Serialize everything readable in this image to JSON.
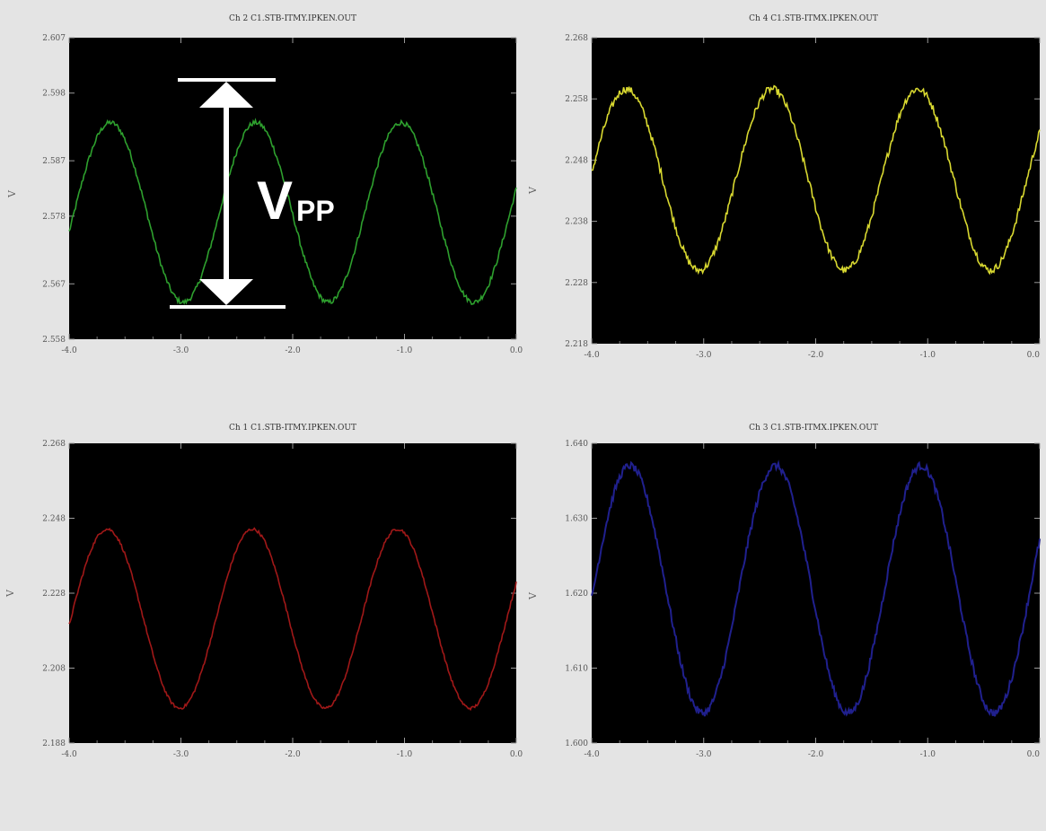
{
  "chart_data": [
    {
      "type": "line",
      "title": "Ch 2  C1.STB-ITMY.IPKEN.OUT",
      "ylabel": "V",
      "color": "#2ea02e",
      "xlim": [
        -4.0,
        0.0
      ],
      "ylim": [
        2.558,
        2.607
      ],
      "x_ticks": [
        -4.0,
        -3.0,
        -2.0,
        -1.0,
        0.0
      ],
      "x_tick_labels": [
        "-4.0",
        "-3.0",
        "-2.0",
        "-1.0",
        "0.0"
      ],
      "y_ticks": [
        2.558,
        2.567,
        2.578,
        2.587,
        2.598,
        2.607
      ],
      "y_tick_labels": [
        "2.558",
        "2.567",
        "2.578",
        "2.587",
        "2.598",
        "2.607"
      ],
      "series": [
        {
          "amplitude": 0.0146,
          "offset": 2.5786,
          "peaks_x": [
            -3.63,
            -2.28,
            -1.03
          ],
          "period": 1.3,
          "noise": 0.0004
        }
      ]
    },
    {
      "type": "line",
      "title": "Ch 4  C1.STB-ITMX.IPKEN.OUT",
      "ylabel": "V",
      "color": "#d8d830",
      "xlim": [
        -4.0,
        0.0
      ],
      "ylim": [
        2.218,
        2.268
      ],
      "x_ticks": [
        -4.0,
        -3.0,
        -2.0,
        -1.0,
        0.0
      ],
      "x_tick_labels": [
        "-4.0",
        "-3.0",
        "-2.0",
        "-1.0",
        "0.0"
      ],
      "y_ticks": [
        2.218,
        2.228,
        2.238,
        2.248,
        2.258,
        2.268
      ],
      "y_tick_labels": [
        "2.218",
        "2.228",
        "2.238",
        "2.248",
        "2.258",
        "2.268"
      ],
      "series": [
        {
          "amplitude": 0.0148,
          "offset": 2.2448,
          "peaks_x": [
            -3.69,
            -2.33,
            -1.05
          ],
          "period": 1.3,
          "noise": 0.0006
        }
      ]
    },
    {
      "type": "line",
      "title": "Ch 1  C1.STB-ITMY.IPKEN.OUT",
      "ylabel": "V",
      "color": "#a01818",
      "xlim": [
        -4.0,
        0.0
      ],
      "ylim": [
        2.188,
        2.268
      ],
      "x_ticks": [
        -4.0,
        -3.0,
        -2.0,
        -1.0,
        0.0
      ],
      "x_tick_labels": [
        "-4.0",
        "-3.0",
        "-2.0",
        "-1.0",
        "0.0"
      ],
      "y_ticks": [
        2.188,
        2.208,
        2.228,
        2.248,
        2.268
      ],
      "y_tick_labels": [
        "2.188",
        "2.208",
        "2.228",
        "2.248",
        "2.268"
      ],
      "series": [
        {
          "amplitude": 0.0239,
          "offset": 2.2212,
          "peaks_x": [
            -3.66,
            -2.34,
            -1.04
          ],
          "period": 1.3,
          "noise": 0.0004
        }
      ]
    },
    {
      "type": "line",
      "title": "Ch 3  C1.STB-ITMX.IPKEN.OUT",
      "ylabel": "V",
      "color": "#20208e",
      "xlim": [
        -4.0,
        0.0
      ],
      "ylim": [
        1.6,
        1.64
      ],
      "x_ticks": [
        -4.0,
        -3.0,
        -2.0,
        -1.0,
        0.0
      ],
      "x_tick_labels": [
        "-4.0",
        "-3.0",
        "-2.0",
        "-1.0",
        "0.0"
      ],
      "y_ticks": [
        1.6,
        1.61,
        1.62,
        1.63,
        1.64
      ],
      "y_tick_labels": [
        "1.600",
        "1.610",
        "1.620",
        "1.630",
        "1.640"
      ],
      "series": [
        {
          "amplitude": 0.0165,
          "offset": 1.6205,
          "peaks_x": [
            -3.66,
            -2.33,
            -1.04
          ],
          "period": 1.3,
          "noise": 0.0005
        }
      ]
    }
  ],
  "annotation": {
    "label_main": "V",
    "label_sub": "PP",
    "color": "#ffffff"
  }
}
